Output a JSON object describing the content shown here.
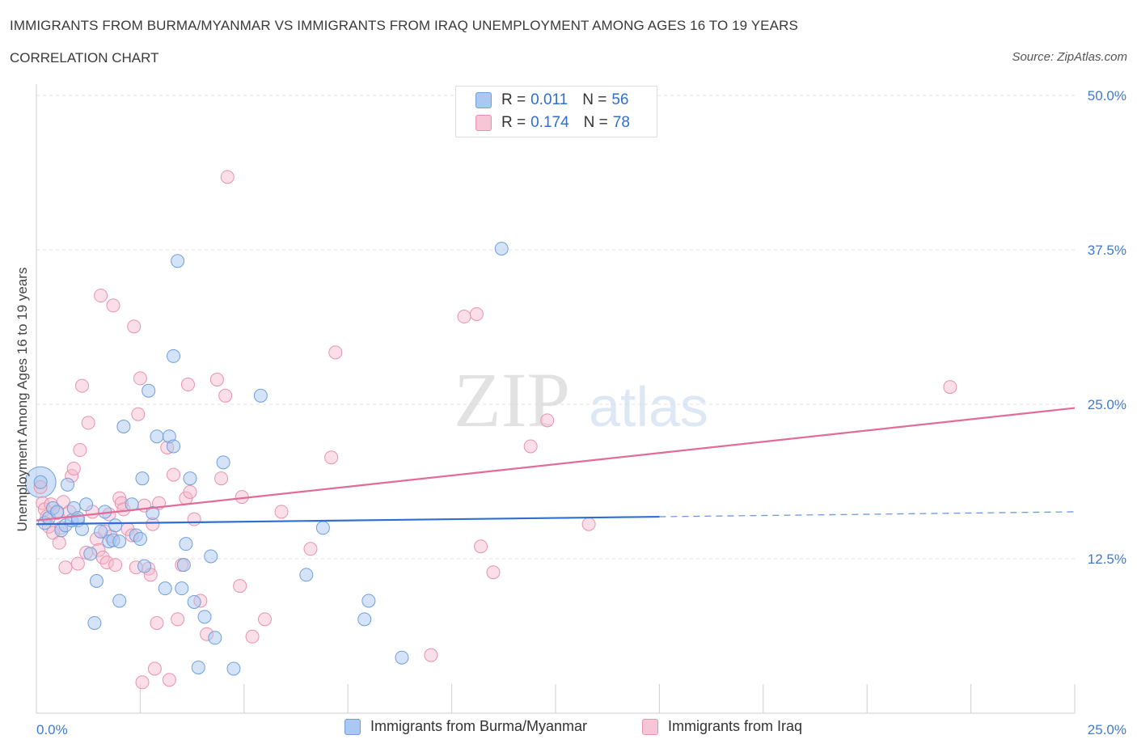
{
  "header": {
    "title": "IMMIGRANTS FROM BURMA/MYANMAR VS IMMIGRANTS FROM IRAQ UNEMPLOYMENT AMONG AGES 16 TO 19 YEARS",
    "subtitle": "CORRELATION CHART",
    "source": "Source: ZipAtlas.com"
  },
  "legend": {
    "rows": [
      {
        "r_label": "R = ",
        "r_value": "0.011",
        "n_label": "N = ",
        "n_value": "56"
      },
      {
        "r_label": "R = ",
        "r_value": "0.174",
        "n_label": "N = ",
        "n_value": "78"
      }
    ]
  },
  "bottom_legend": {
    "series1": "Immigrants from Burma/Myanmar",
    "series2": "Immigrants from Iraq"
  },
  "colors": {
    "series1_fill": "#aac8f0",
    "series1_stroke": "#6f9fdc",
    "series1_line": "#2f6fd0",
    "series2_fill": "#f5b8cc",
    "series2_stroke": "#e892ad",
    "series2_line": "#e06c97",
    "axis_text": "#3f7ad0",
    "grid": "#e2e2e2",
    "watermark": "#d9d9d9"
  },
  "watermark": {
    "zip": "ZIP",
    "atlas": "atlas"
  },
  "chart_data": {
    "type": "scatter",
    "ylabel": "Unemployment Among Ages 16 to 19 years",
    "xlim": [
      0,
      25
    ],
    "ylim": [
      0,
      50
    ],
    "x_tick_labels": [
      "0.0%",
      "25.0%"
    ],
    "y_ticks": [
      12.5,
      25,
      37.5,
      50
    ],
    "y_tick_labels": [
      "12.5%",
      "25.0%",
      "37.5%",
      "50.0%"
    ],
    "grid": true,
    "series": [
      {
        "name": "Immigrants from Burma/Myanmar",
        "R": 0.011,
        "N": 56,
        "trend": {
          "x0": 0,
          "y0": 15.3,
          "x1": 15,
          "y1": 15.9,
          "dashed_to_x": 25,
          "dashed_to_y": 16.3
        },
        "points": [
          [
            0.1,
            18.7
          ],
          [
            0.2,
            15.4
          ],
          [
            0.3,
            15.8
          ],
          [
            0.4,
            16.6
          ],
          [
            0.5,
            16.3
          ],
          [
            0.6,
            14.8
          ],
          [
            0.7,
            15.2
          ],
          [
            0.75,
            18.5
          ],
          [
            0.85,
            15.6
          ],
          [
            0.9,
            16.6
          ],
          [
            1.0,
            15.6
          ],
          [
            1.1,
            14.9
          ],
          [
            1.2,
            16.9
          ],
          [
            1.3,
            12.9
          ],
          [
            1.45,
            10.7
          ],
          [
            1.55,
            14.7
          ],
          [
            1.65,
            16.3
          ],
          [
            1.75,
            13.9
          ],
          [
            1.85,
            14.0
          ],
          [
            1.9,
            15.2
          ],
          [
            2.0,
            9.1
          ],
          [
            2.1,
            23.2
          ],
          [
            2.3,
            16.9
          ],
          [
            2.4,
            14.4
          ],
          [
            2.5,
            14.1
          ],
          [
            2.55,
            19.0
          ],
          [
            2.6,
            11.9
          ],
          [
            2.7,
            26.1
          ],
          [
            2.8,
            16.2
          ],
          [
            2.9,
            22.4
          ],
          [
            3.1,
            10.1
          ],
          [
            3.2,
            22.4
          ],
          [
            3.3,
            21.6
          ],
          [
            3.4,
            36.6
          ],
          [
            3.5,
            10.1
          ],
          [
            3.55,
            12.0
          ],
          [
            3.6,
            13.7
          ],
          [
            3.7,
            19.0
          ],
          [
            3.8,
            9.0
          ],
          [
            3.9,
            3.7
          ],
          [
            4.05,
            7.8
          ],
          [
            4.2,
            12.7
          ],
          [
            4.3,
            6.1
          ],
          [
            4.5,
            20.3
          ],
          [
            4.75,
            3.6
          ],
          [
            5.4,
            25.7
          ],
          [
            1.4,
            7.3
          ],
          [
            2.0,
            13.9
          ],
          [
            6.5,
            11.2
          ],
          [
            6.9,
            15.0
          ],
          [
            7.9,
            7.6
          ],
          [
            8.0,
            9.1
          ],
          [
            8.8,
            4.5
          ],
          [
            11.2,
            37.6
          ],
          [
            3.3,
            28.9
          ],
          [
            1.0,
            15.8
          ]
        ],
        "bubble": {
          "x": 0.1,
          "y": 18.7,
          "size": "large"
        }
      },
      {
        "name": "Immigrants from Iraq",
        "R": 0.174,
        "N": 78,
        "trend": {
          "x0": 0,
          "y0": 15.6,
          "x1": 25,
          "y1": 24.7
        },
        "points": [
          [
            0.1,
            18.3
          ],
          [
            0.15,
            17.0
          ],
          [
            0.2,
            16.5
          ],
          [
            0.3,
            15.1
          ],
          [
            0.35,
            16.9
          ],
          [
            0.4,
            14.6
          ],
          [
            0.5,
            16.2
          ],
          [
            0.55,
            13.8
          ],
          [
            0.6,
            15.0
          ],
          [
            0.65,
            17.1
          ],
          [
            0.7,
            11.8
          ],
          [
            0.8,
            16.3
          ],
          [
            0.85,
            19.2
          ],
          [
            0.9,
            19.8
          ],
          [
            1.0,
            12.1
          ],
          [
            1.05,
            21.3
          ],
          [
            1.1,
            26.5
          ],
          [
            1.2,
            13.0
          ],
          [
            1.25,
            23.5
          ],
          [
            1.35,
            16.3
          ],
          [
            1.45,
            14.1
          ],
          [
            1.5,
            13.2
          ],
          [
            1.55,
            33.8
          ],
          [
            1.6,
            12.6
          ],
          [
            1.65,
            14.7
          ],
          [
            1.7,
            12.2
          ],
          [
            1.75,
            16.1
          ],
          [
            1.8,
            14.3
          ],
          [
            1.85,
            33.0
          ],
          [
            1.9,
            12.0
          ],
          [
            2.0,
            17.4
          ],
          [
            2.05,
            17.0
          ],
          [
            2.1,
            16.5
          ],
          [
            2.2,
            14.9
          ],
          [
            2.3,
            14.4
          ],
          [
            2.35,
            31.3
          ],
          [
            2.4,
            11.8
          ],
          [
            2.45,
            24.2
          ],
          [
            2.5,
            27.1
          ],
          [
            2.55,
            2.5
          ],
          [
            2.6,
            16.8
          ],
          [
            2.7,
            11.7
          ],
          [
            2.75,
            11.2
          ],
          [
            2.8,
            15.3
          ],
          [
            2.85,
            3.6
          ],
          [
            2.9,
            7.3
          ],
          [
            2.95,
            17.0
          ],
          [
            3.15,
            21.5
          ],
          [
            3.2,
            2.7
          ],
          [
            3.3,
            19.3
          ],
          [
            3.4,
            7.6
          ],
          [
            3.5,
            12.0
          ],
          [
            3.6,
            17.4
          ],
          [
            3.65,
            26.6
          ],
          [
            3.7,
            17.9
          ],
          [
            3.8,
            15.7
          ],
          [
            3.95,
            9.1
          ],
          [
            4.1,
            6.4
          ],
          [
            4.35,
            27.0
          ],
          [
            4.45,
            19.0
          ],
          [
            4.55,
            25.7
          ],
          [
            4.6,
            43.4
          ],
          [
            4.9,
            10.3
          ],
          [
            4.95,
            17.5
          ],
          [
            5.2,
            6.2
          ],
          [
            5.5,
            7.6
          ],
          [
            5.9,
            16.3
          ],
          [
            6.6,
            13.3
          ],
          [
            7.1,
            20.7
          ],
          [
            7.2,
            29.2
          ],
          [
            9.5,
            4.7
          ],
          [
            10.3,
            32.1
          ],
          [
            10.6,
            32.3
          ],
          [
            10.7,
            13.5
          ],
          [
            11.0,
            11.4
          ],
          [
            11.9,
            21.6
          ],
          [
            12.3,
            23.7
          ],
          [
            13.3,
            15.3
          ],
          [
            22.0,
            26.4
          ],
          [
            0.25,
            15.9
          ]
        ]
      }
    ]
  }
}
